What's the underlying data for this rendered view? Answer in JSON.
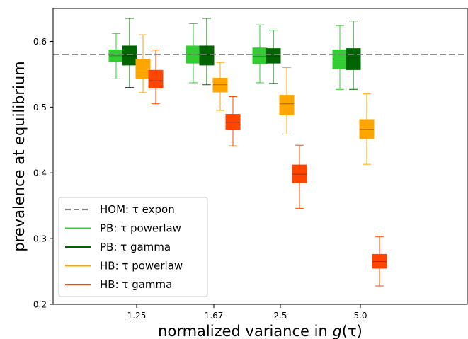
{
  "chart_data": {
    "type": "box",
    "title": "",
    "xlabel_main": "normalized variance in ",
    "xlabel_math": "g",
    "xlabel_arg": "(τ)",
    "ylabel": "prevalence at equilibrium",
    "categories": [
      "1.25",
      "1.67",
      "2.5",
      "5.0"
    ],
    "yticks": [
      "0.2",
      "0.3",
      "0.4",
      "0.5",
      "0.6"
    ],
    "ylim": [
      0.2,
      0.65
    ],
    "grid": false,
    "legend_position": "lower-left",
    "reference_line": {
      "name": "HOM: τ expon",
      "value": 0.58,
      "color": "#808080",
      "style": "dashed"
    },
    "series": [
      {
        "name": "PB: τ powerlaw",
        "color": "#32CD32",
        "boxes": [
          {
            "whislo": 0.543,
            "q1": 0.569,
            "med": 0.578,
            "q3": 0.587,
            "whishi": 0.612
          },
          {
            "whislo": 0.537,
            "q1": 0.567,
            "med": 0.58,
            "q3": 0.593,
            "whishi": 0.627
          },
          {
            "whislo": 0.537,
            "q1": 0.566,
            "med": 0.577,
            "q3": 0.59,
            "whishi": 0.625
          },
          {
            "whislo": 0.527,
            "q1": 0.558,
            "med": 0.573,
            "q3": 0.587,
            "whishi": 0.624
          }
        ]
      },
      {
        "name": "PB: τ gamma",
        "color": "#006400",
        "boxes": [
          {
            "whislo": 0.53,
            "q1": 0.564,
            "med": 0.578,
            "q3": 0.593,
            "whishi": 0.635
          },
          {
            "whislo": 0.534,
            "q1": 0.564,
            "med": 0.579,
            "q3": 0.593,
            "whishi": 0.635
          },
          {
            "whislo": 0.536,
            "q1": 0.567,
            "med": 0.577,
            "q3": 0.589,
            "whishi": 0.617
          },
          {
            "whislo": 0.527,
            "q1": 0.557,
            "med": 0.576,
            "q3": 0.589,
            "whishi": 0.631
          }
        ]
      },
      {
        "name": "HB: τ powerlaw",
        "color": "#FFA500",
        "boxes": [
          {
            "whislo": 0.522,
            "q1": 0.544,
            "med": 0.558,
            "q3": 0.573,
            "whishi": 0.61
          },
          {
            "whislo": 0.495,
            "q1": 0.523,
            "med": 0.534,
            "q3": 0.544,
            "whishi": 0.568
          },
          {
            "whislo": 0.459,
            "q1": 0.488,
            "med": 0.505,
            "q3": 0.518,
            "whishi": 0.56
          },
          {
            "whislo": 0.413,
            "q1": 0.452,
            "med": 0.466,
            "q3": 0.481,
            "whishi": 0.52
          }
        ]
      },
      {
        "name": "HB: τ gamma",
        "color": "#FF4500",
        "boxes": [
          {
            "whislo": 0.505,
            "q1": 0.529,
            "med": 0.54,
            "q3": 0.556,
            "whishi": 0.587
          },
          {
            "whislo": 0.441,
            "q1": 0.466,
            "med": 0.477,
            "q3": 0.489,
            "whishi": 0.516
          },
          {
            "whislo": 0.346,
            "q1": 0.385,
            "med": 0.398,
            "q3": 0.412,
            "whishi": 0.442
          },
          {
            "whislo": 0.228,
            "q1": 0.255,
            "med": 0.265,
            "q3": 0.276,
            "whishi": 0.303
          }
        ]
      }
    ]
  }
}
